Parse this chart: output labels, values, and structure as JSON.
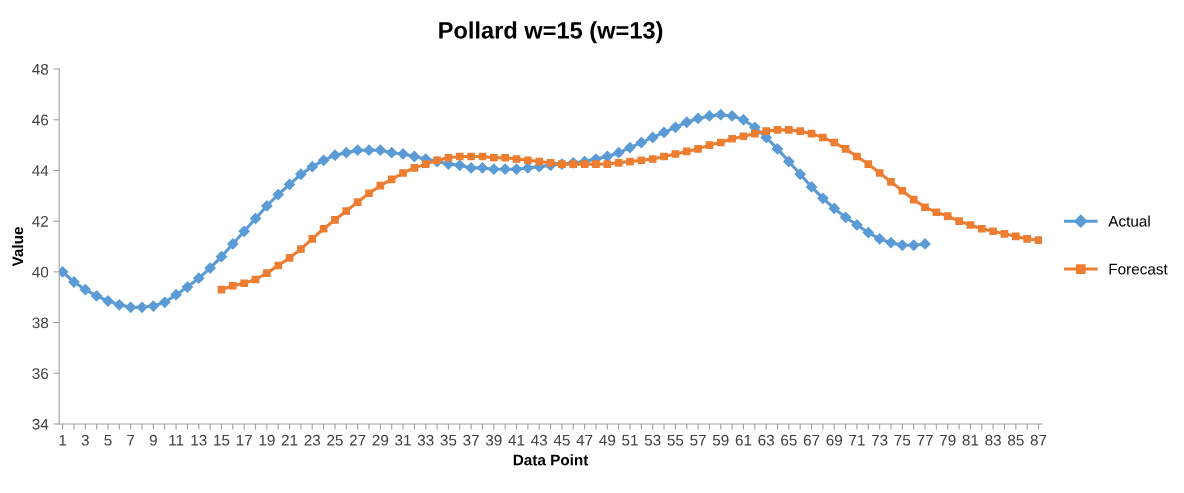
{
  "chart_data": {
    "type": "line",
    "title": "Pollard w=15 (w=13)",
    "xlabel": "Data Point",
    "ylabel": "Value",
    "categories": [
      "1",
      null,
      "3",
      null,
      "5",
      null,
      "7",
      null,
      "9",
      null,
      "11",
      null,
      "13",
      null,
      "15",
      null,
      "17",
      null,
      "19",
      null,
      "21",
      null,
      "23",
      null,
      "25",
      null,
      "27",
      null,
      "29",
      null,
      "31",
      null,
      "33",
      null,
      "35",
      null,
      "37",
      null,
      "39",
      null,
      "41",
      null,
      "43",
      null,
      "45",
      null,
      "47",
      null,
      "49",
      null,
      "51",
      null,
      "53",
      null,
      "55",
      null,
      "57",
      null,
      "59",
      null,
      "61",
      null,
      "63",
      null,
      "65",
      null,
      "67",
      null,
      "69",
      null,
      "71",
      null,
      "73",
      null,
      "75",
      null,
      "77",
      null,
      "79",
      null,
      "81",
      null,
      "83",
      null,
      "85",
      null,
      "87"
    ],
    "ylim": [
      34,
      48
    ],
    "yticks": [
      34,
      36,
      38,
      40,
      42,
      44,
      46,
      48
    ],
    "grid": false,
    "legend": "right",
    "series": [
      {
        "name": "Actual",
        "color": "#5b9bd5",
        "marker": "diamond",
        "values": [
          40.0,
          39.6,
          39.3,
          39.05,
          38.85,
          38.7,
          38.6,
          38.6,
          38.65,
          38.8,
          39.1,
          39.4,
          39.75,
          40.15,
          40.6,
          41.1,
          41.6,
          42.1,
          42.6,
          43.05,
          43.45,
          43.85,
          44.15,
          44.4,
          44.6,
          44.7,
          44.8,
          44.8,
          44.8,
          44.7,
          44.65,
          44.55,
          44.45,
          44.35,
          44.25,
          44.2,
          44.1,
          44.1,
          44.05,
          44.05,
          44.05,
          44.1,
          44.15,
          44.2,
          44.25,
          44.3,
          44.35,
          44.45,
          44.55,
          44.7,
          44.9,
          45.1,
          45.3,
          45.5,
          45.7,
          45.9,
          46.05,
          46.15,
          46.2,
          46.15,
          46.0,
          45.7,
          45.3,
          44.85,
          44.35,
          43.85,
          43.35,
          42.9,
          42.5,
          42.15,
          41.85,
          41.55,
          41.3,
          41.15,
          41.05,
          41.05,
          41.1,
          null,
          null,
          null,
          null,
          null,
          null,
          null,
          null,
          null,
          null
        ]
      },
      {
        "name": "Forecast",
        "color": "#ed7d31",
        "marker": "square",
        "values": [
          null,
          null,
          null,
          null,
          null,
          null,
          null,
          null,
          null,
          null,
          null,
          null,
          null,
          null,
          39.3,
          39.45,
          39.55,
          39.7,
          39.95,
          40.25,
          40.55,
          40.9,
          41.3,
          41.7,
          42.05,
          42.4,
          42.75,
          43.1,
          43.4,
          43.65,
          43.9,
          44.1,
          44.25,
          44.4,
          44.5,
          44.55,
          44.55,
          44.55,
          44.5,
          44.5,
          44.45,
          44.4,
          44.35,
          44.3,
          44.25,
          44.25,
          44.25,
          44.25,
          44.25,
          44.3,
          44.35,
          44.4,
          44.45,
          44.55,
          44.65,
          44.75,
          44.85,
          45.0,
          45.1,
          45.25,
          45.35,
          45.45,
          45.55,
          45.6,
          45.6,
          45.55,
          45.45,
          45.3,
          45.1,
          44.85,
          44.55,
          44.25,
          43.9,
          43.55,
          43.2,
          42.85,
          42.55,
          42.35,
          42.2,
          42.0,
          41.85,
          41.7,
          41.6,
          41.5,
          41.4,
          41.3,
          41.25
        ]
      }
    ]
  }
}
